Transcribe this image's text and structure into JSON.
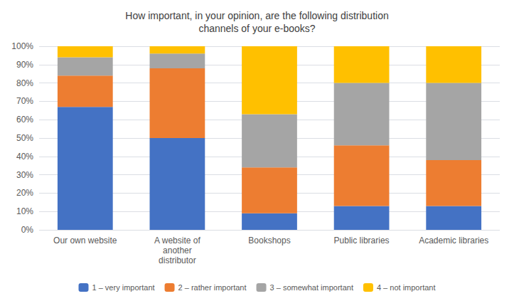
{
  "chart_data": {
    "type": "bar",
    "stacked": true,
    "title": "How important, in your opinion, are the following distribution\nchannels of your e-books?",
    "categories": [
      "Our own website",
      "A website of\nanother\ndistributor",
      "Bookshops",
      "Public libraries",
      "Academic libraries"
    ],
    "series": [
      {
        "name": "1 – very important",
        "color": "#4472C4",
        "values": [
          67,
          50,
          9,
          13,
          13
        ]
      },
      {
        "name": "2 – rather important",
        "color": "#ED7D31",
        "values": [
          17,
          38,
          25,
          33,
          25
        ]
      },
      {
        "name": "3 – somewhat important",
        "color": "#A5A5A5",
        "values": [
          10,
          8,
          29,
          34,
          42
        ]
      },
      {
        "name": "4 – not important",
        "color": "#FFC000",
        "values": [
          6,
          4,
          37,
          20,
          20
        ]
      }
    ],
    "ylim": [
      0,
      100
    ],
    "yticks": [
      {
        "value": 0,
        "label": "0%"
      },
      {
        "value": 10,
        "label": "10%"
      },
      {
        "value": 20,
        "label": "20%"
      },
      {
        "value": 30,
        "label": "30%"
      },
      {
        "value": 40,
        "label": "40%"
      },
      {
        "value": 50,
        "label": "50%"
      },
      {
        "value": 60,
        "label": "60%"
      },
      {
        "value": 70,
        "label": "70%"
      },
      {
        "value": 80,
        "label": "80%"
      },
      {
        "value": 90,
        "label": "90%"
      },
      {
        "value": 100,
        "label": "100%"
      }
    ],
    "grid": true,
    "legend": "bottom"
  }
}
